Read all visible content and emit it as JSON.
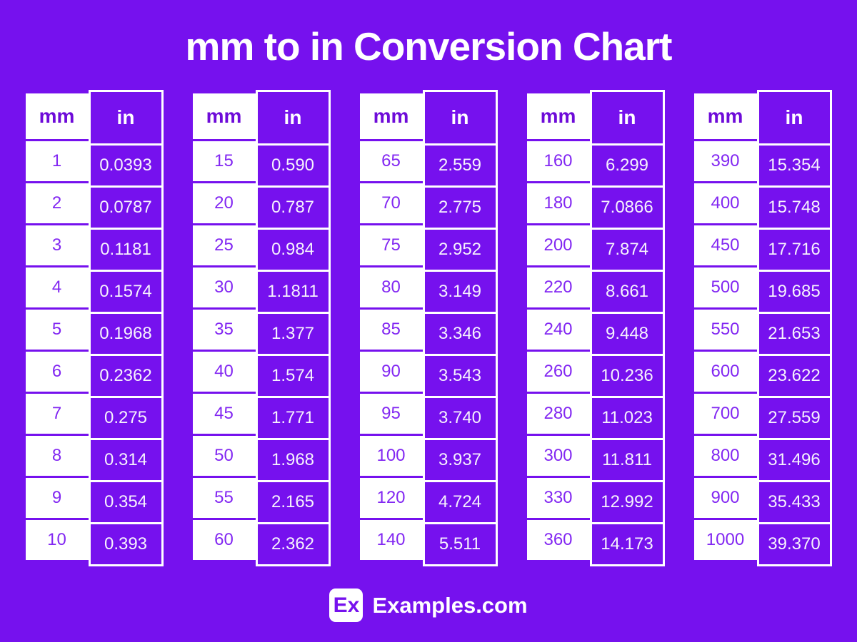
{
  "title": "mm to in Conversion Chart",
  "colors": {
    "background": "#7611ee",
    "cell_purple": "#7611ee",
    "white": "#ffffff",
    "header_text_purple": "#6e0bd9",
    "data_text_purple": "#8227f2"
  },
  "chart_data": {
    "type": "table",
    "title": "mm to in Conversion Chart",
    "columns": [
      "mm",
      "in"
    ],
    "groups": [
      [
        [
          "1",
          "0.0393"
        ],
        [
          "2",
          "0.0787"
        ],
        [
          "3",
          "0.1181"
        ],
        [
          "4",
          "0.1574"
        ],
        [
          "5",
          "0.1968"
        ],
        [
          "6",
          "0.2362"
        ],
        [
          "7",
          "0.275"
        ],
        [
          "8",
          "0.314"
        ],
        [
          "9",
          "0.354"
        ],
        [
          "10",
          "0.393"
        ]
      ],
      [
        [
          "15",
          "0.590"
        ],
        [
          "20",
          "0.787"
        ],
        [
          "25",
          "0.984"
        ],
        [
          "30",
          "1.1811"
        ],
        [
          "35",
          "1.377"
        ],
        [
          "40",
          "1.574"
        ],
        [
          "45",
          "1.771"
        ],
        [
          "50",
          "1.968"
        ],
        [
          "55",
          "2.165"
        ],
        [
          "60",
          "2.362"
        ]
      ],
      [
        [
          "65",
          "2.559"
        ],
        [
          "70",
          "2.775"
        ],
        [
          "75",
          "2.952"
        ],
        [
          "80",
          "3.149"
        ],
        [
          "85",
          "3.346"
        ],
        [
          "90",
          "3.543"
        ],
        [
          "95",
          "3.740"
        ],
        [
          "100",
          "3.937"
        ],
        [
          "120",
          "4.724"
        ],
        [
          "140",
          "5.511"
        ]
      ],
      [
        [
          "160",
          "6.299"
        ],
        [
          "180",
          "7.0866"
        ],
        [
          "200",
          "7.874"
        ],
        [
          "220",
          "8.661"
        ],
        [
          "240",
          "9.448"
        ],
        [
          "260",
          "10.236"
        ],
        [
          "280",
          "11.023"
        ],
        [
          "300",
          "11.811"
        ],
        [
          "330",
          "12.992"
        ],
        [
          "360",
          "14.173"
        ]
      ],
      [
        [
          "390",
          "15.354"
        ],
        [
          "400",
          "15.748"
        ],
        [
          "450",
          "17.716"
        ],
        [
          "500",
          "19.685"
        ],
        [
          "550",
          "21.653"
        ],
        [
          "600",
          "23.622"
        ],
        [
          "700",
          "27.559"
        ],
        [
          "800",
          "31.496"
        ],
        [
          "900",
          "35.433"
        ],
        [
          "1000",
          "39.370"
        ]
      ]
    ]
  },
  "footer": {
    "logo_text": "Ex",
    "site_name": "Examples.com"
  }
}
